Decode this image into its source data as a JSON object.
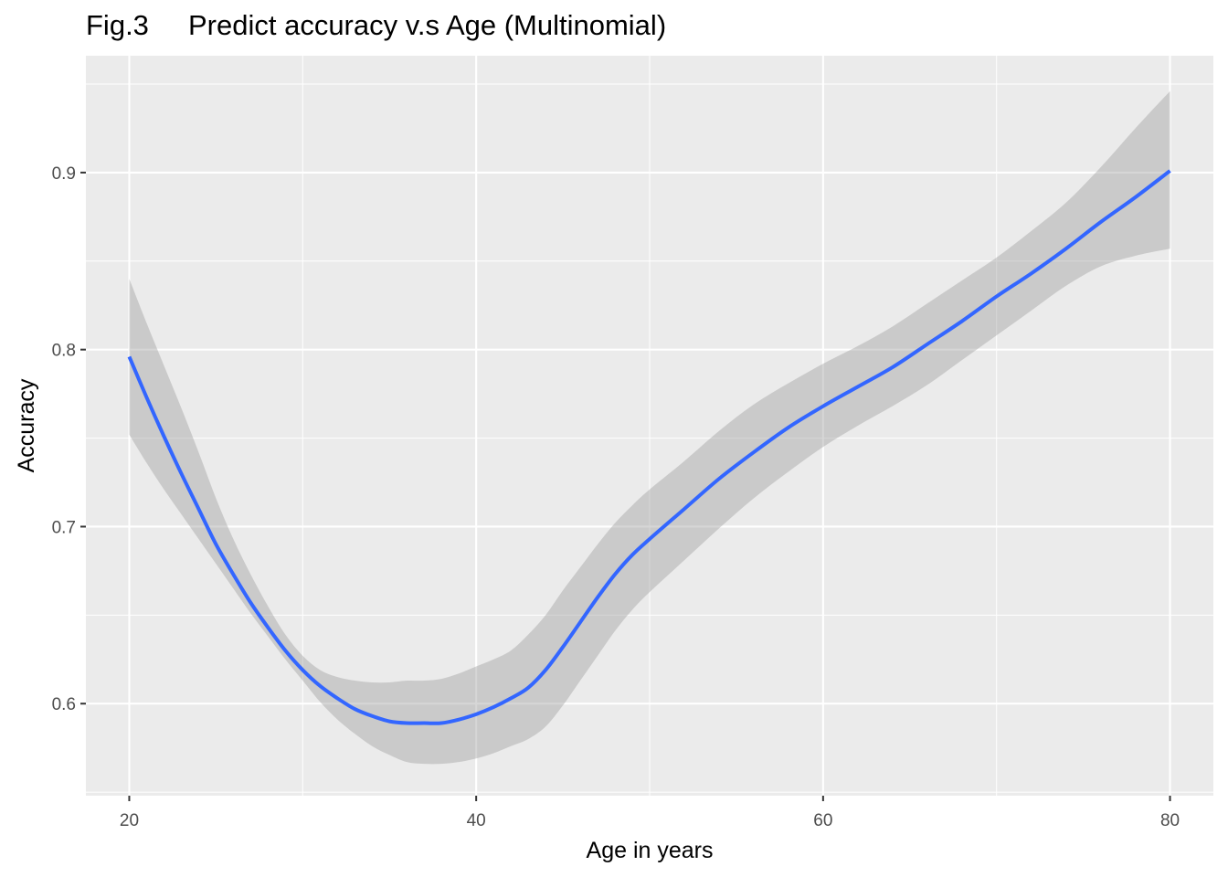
{
  "chart_data": {
    "type": "line",
    "title": "Fig.3     Predict accuracy v.s Age (Multinomial)",
    "xlabel": "Age in years",
    "ylabel": "Accuracy",
    "xlim": [
      17.5,
      82.5
    ],
    "ylim": [
      0.548,
      0.966
    ],
    "x_ticks": [
      20,
      40,
      60,
      80
    ],
    "x_tick_labels": [
      "20",
      "40",
      "60",
      "80"
    ],
    "y_ticks": [
      0.6,
      0.7,
      0.8,
      0.9
    ],
    "y_tick_labels": [
      "0.6",
      "0.7",
      "0.8",
      "0.9"
    ],
    "grid": true,
    "series": [
      {
        "color": "#3366FF",
        "x": [
          20,
          21,
          22,
          23,
          24,
          25,
          26,
          27,
          28,
          29,
          30,
          31,
          32,
          33,
          34,
          35,
          36,
          37,
          38,
          39,
          40,
          41,
          42,
          43,
          44,
          45,
          46,
          47,
          48,
          49,
          50,
          52,
          54,
          56,
          58,
          60,
          62,
          64,
          66,
          68,
          70,
          72,
          74,
          76,
          78,
          80
        ],
        "values": [
          0.796,
          0.773,
          0.751,
          0.73,
          0.71,
          0.69,
          0.673,
          0.657,
          0.643,
          0.63,
          0.619,
          0.61,
          0.603,
          0.597,
          0.593,
          0.59,
          0.589,
          0.589,
          0.589,
          0.591,
          0.594,
          0.598,
          0.603,
          0.609,
          0.619,
          0.632,
          0.646,
          0.66,
          0.673,
          0.684,
          0.693,
          0.71,
          0.727,
          0.742,
          0.756,
          0.768,
          0.779,
          0.79,
          0.803,
          0.816,
          0.83,
          0.843,
          0.857,
          0.872,
          0.886,
          0.901
        ],
        "lower": [
          0.752,
          0.736,
          0.721,
          0.707,
          0.693,
          0.679,
          0.665,
          0.651,
          0.638,
          0.625,
          0.613,
          0.601,
          0.591,
          0.583,
          0.576,
          0.571,
          0.567,
          0.566,
          0.566,
          0.567,
          0.569,
          0.572,
          0.576,
          0.58,
          0.587,
          0.599,
          0.613,
          0.627,
          0.641,
          0.653,
          0.663,
          0.681,
          0.699,
          0.716,
          0.731,
          0.745,
          0.757,
          0.768,
          0.78,
          0.794,
          0.808,
          0.822,
          0.836,
          0.847,
          0.853,
          0.857
        ],
        "upper": [
          0.84,
          0.815,
          0.791,
          0.767,
          0.742,
          0.716,
          0.693,
          0.673,
          0.655,
          0.639,
          0.627,
          0.619,
          0.615,
          0.613,
          0.612,
          0.612,
          0.613,
          0.613,
          0.614,
          0.617,
          0.621,
          0.625,
          0.63,
          0.639,
          0.65,
          0.664,
          0.677,
          0.69,
          0.702,
          0.712,
          0.721,
          0.737,
          0.754,
          0.769,
          0.781,
          0.792,
          0.802,
          0.813,
          0.826,
          0.839,
          0.852,
          0.867,
          0.883,
          0.903,
          0.925,
          0.946
        ]
      }
    ]
  }
}
